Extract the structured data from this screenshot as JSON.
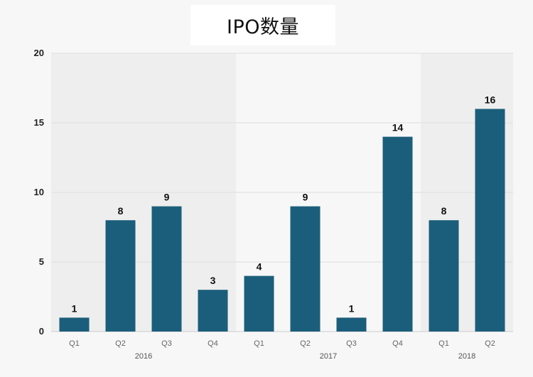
{
  "title": "IPO数量",
  "colors": {
    "bar": "#1b5e7b",
    "band_dark": "#eeeeee",
    "band_light": "#f7f7f7",
    "grid": "#dddddd"
  },
  "chart_data": {
    "type": "bar",
    "title": "IPO数量",
    "xlabel": "",
    "ylabel": "",
    "categories": [
      "Q1",
      "Q2",
      "Q3",
      "Q4",
      "Q1",
      "Q2",
      "Q3",
      "Q4",
      "Q1",
      "Q2"
    ],
    "groups": [
      {
        "label": "2016",
        "count": 4
      },
      {
        "label": "2017",
        "count": 4
      },
      {
        "label": "2018",
        "count": 2
      }
    ],
    "values": [
      1,
      8,
      9,
      3,
      4,
      9,
      1,
      14,
      8,
      16
    ],
    "ylim": [
      0,
      20
    ],
    "yticks": [
      0,
      5,
      10,
      15,
      20
    ],
    "grid": true,
    "legend": "none"
  }
}
